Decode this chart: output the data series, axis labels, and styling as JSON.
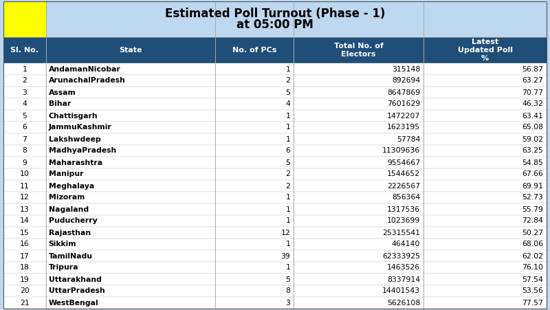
{
  "title_line1": "Estimated Poll Turnout (Phase - 1)",
  "title_line2": "at 05:00 PM",
  "header_bg": "#1F4E79",
  "header_text_color": "#FFFFFF",
  "title_bg": "#BDD7EE",
  "title_text_color": "#000000",
  "yellow_box_color": "#FFFF00",
  "row_bg": "#FFFFFF",
  "border_color": "#000000",
  "grid_color": "#CCCCCC",
  "col_headers": [
    "Sl. No.",
    "State",
    "No. of PCs",
    "Total No. of\nElectors",
    "Latest\nUpdated Poll\n%"
  ],
  "rows": [
    [
      1,
      "AndamanNicobar",
      1,
      315148,
      56.87
    ],
    [
      2,
      "ArunachalPradesh",
      2,
      892694,
      63.27
    ],
    [
      3,
      "Assam",
      5,
      8647869,
      70.77
    ],
    [
      4,
      "Bihar",
      4,
      7601629,
      46.32
    ],
    [
      5,
      "Chattisgarh",
      1,
      1472207,
      63.41
    ],
    [
      6,
      "JammuKashmir",
      1,
      1623195,
      65.08
    ],
    [
      7,
      "Lakshwdeep",
      1,
      57784,
      59.02
    ],
    [
      8,
      "MadhyaPradesh",
      6,
      11309636,
      63.25
    ],
    [
      9,
      "Maharashtra",
      5,
      9554667,
      54.85
    ],
    [
      10,
      "Manipur",
      2,
      1544652,
      67.66
    ],
    [
      11,
      "Meghalaya",
      2,
      2226567,
      69.91
    ],
    [
      12,
      "Mizoram",
      1,
      856364,
      52.73
    ],
    [
      13,
      "Nagaland",
      1,
      1317536,
      55.79
    ],
    [
      14,
      "Puducherry",
      1,
      1023699,
      72.84
    ],
    [
      15,
      "Rajasthan",
      12,
      25315541,
      50.27
    ],
    [
      16,
      "Sikkim",
      1,
      464140,
      68.06
    ],
    [
      17,
      "TamilNadu",
      39,
      62333925,
      62.02
    ],
    [
      18,
      "Tripura",
      1,
      1463526,
      76.1
    ],
    [
      19,
      "Uttarakhand",
      5,
      8337914,
      57.54
    ],
    [
      20,
      "UttarPradesh",
      8,
      14401543,
      53.56
    ],
    [
      21,
      "WestBengal",
      3,
      5626108,
      77.57
    ]
  ],
  "font_size_title": 12,
  "font_size_header": 8,
  "font_size_data": 7.8
}
